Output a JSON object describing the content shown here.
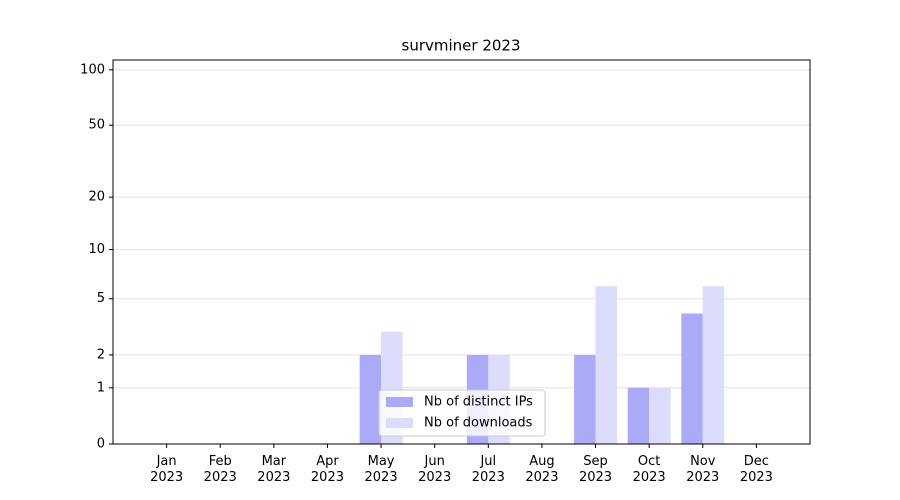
{
  "chart_data": {
    "type": "bar",
    "title": "survminer 2023",
    "categories": [
      "Jan 2023",
      "Feb 2023",
      "Mar 2023",
      "Apr 2023",
      "May 2023",
      "Jun 2023",
      "Jul 2023",
      "Aug 2023",
      "Sep 2023",
      "Oct 2023",
      "Nov 2023",
      "Dec 2023"
    ],
    "series": [
      {
        "name": "Nb of distinct IPs",
        "color": "#aaaaf8",
        "values": [
          0,
          0,
          0,
          0,
          2,
          0,
          2,
          0,
          2,
          1,
          4,
          0
        ]
      },
      {
        "name": "Nb of downloads",
        "color": "#dcdcfc",
        "values": [
          0,
          0,
          0,
          0,
          3,
          0,
          2,
          0,
          6,
          1,
          6,
          0
        ]
      }
    ],
    "y_scale": "log1p",
    "ylim": [
      0,
      113
    ],
    "yticks": [
      0,
      1,
      2,
      5,
      10,
      20,
      50,
      100
    ],
    "grid": true,
    "legend": "lower center"
  }
}
